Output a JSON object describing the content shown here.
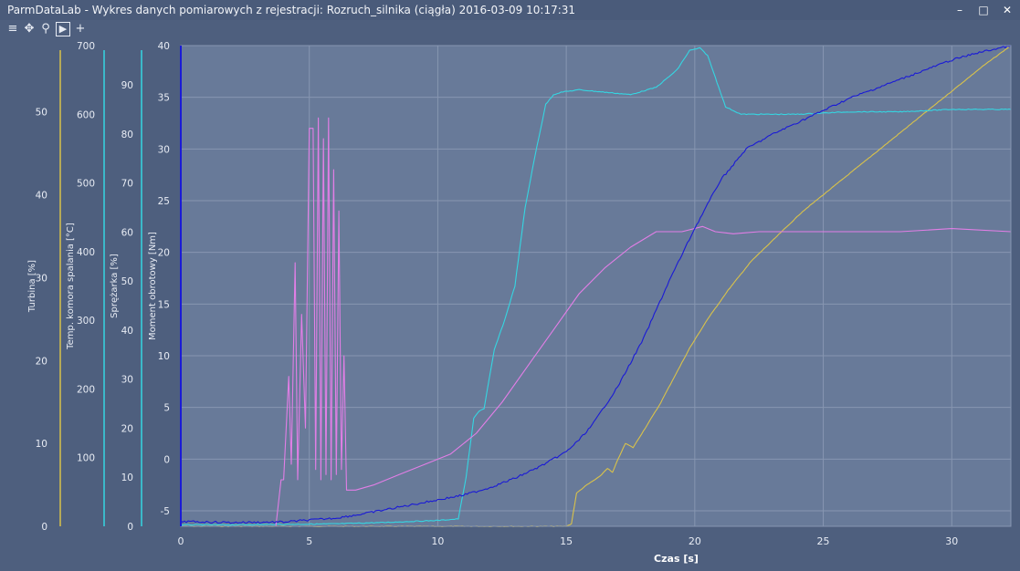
{
  "window": {
    "title": "ParmDataLab - Wykres danych pomiarowych z rejestracji: Rozruch_silnika (ciągła) 2016-03-09 10:17:31",
    "minimize_glyph": "–",
    "maximize_glyph": "□",
    "close_glyph": "✕"
  },
  "toolbar": {
    "icons": [
      "menu-icon",
      "pan-icon",
      "zoom-icon",
      "play-icon",
      "crosshair-icon"
    ]
  },
  "colors": {
    "background": "#4e5f7e",
    "plot_area": "#687a99",
    "grid": "#8796b1",
    "turbina": "#d9c24a",
    "temp": "#35d6e2",
    "sprezarka": "#35d6e2",
    "moment": "#e27ee6",
    "blue_series": "#1a1ad6"
  },
  "chart_data": {
    "type": "line",
    "title": "",
    "xlabel": "Czas [s]",
    "xlim": [
      0,
      32.3
    ],
    "xticks": [
      0,
      5,
      10,
      15,
      20,
      25,
      30
    ],
    "axes": [
      {
        "id": "turbina",
        "label": "Turbina [%]",
        "range": [
          0,
          58
        ],
        "ticks": [
          0,
          10,
          20,
          30,
          40,
          50
        ],
        "color": "#d9c24a"
      },
      {
        "id": "temp",
        "label": "Temp. komora spalania [°C]",
        "range": [
          0,
          700
        ],
        "ticks": [
          100,
          200,
          300,
          400,
          500,
          600,
          700
        ],
        "color": "#35d6e2"
      },
      {
        "id": "sprezarka",
        "label": "Sprężarka [%]",
        "range": [
          0,
          98
        ],
        "ticks": [
          0,
          10,
          20,
          30,
          40,
          50,
          60,
          70,
          80,
          90
        ],
        "color": "#35d6e2"
      },
      {
        "id": "moment",
        "label": "Moment obrotowy [Nm]",
        "range": [
          -6.5,
          40
        ],
        "ticks": [
          -5,
          0,
          5,
          10,
          15,
          20,
          25,
          30,
          35,
          40
        ],
        "color": "#e27ee6"
      },
      {
        "id": "blue",
        "label": "",
        "range": [
          0,
          100
        ],
        "ticks": [],
        "color": "#1a1ad6"
      }
    ],
    "series": [
      {
        "axis": "turbina",
        "color": "#d9c24a",
        "x": [
          0,
          15.0,
          15.2,
          15.4,
          15.8,
          16.3,
          16.6,
          16.8,
          17.0,
          17.3,
          17.6,
          18.0,
          18.6,
          19.2,
          19.8,
          20.5,
          21.3,
          22.2,
          23.2,
          24.2,
          25.2,
          26.2,
          27.2,
          28.2,
          29.2,
          30.2,
          31.2,
          32.3
        ],
        "y": [
          0,
          0,
          0.3,
          4.0,
          5.0,
          6.0,
          7.0,
          6.5,
          8.0,
          10.0,
          9.5,
          11.5,
          14.5,
          18.0,
          21.5,
          25.0,
          28.5,
          32.0,
          35.0,
          38.0,
          40.5,
          43.0,
          45.5,
          48.0,
          50.5,
          53.0,
          55.5,
          58.0
        ]
      },
      {
        "axis": "sprezarka",
        "color": "#35d6e2",
        "x": [
          0,
          2,
          4,
          6,
          8,
          10,
          10.8,
          11.1,
          11.4,
          11.6,
          11.8,
          12.2,
          12.6,
          13.0,
          13.4,
          13.8,
          14.2,
          14.5,
          14.8,
          15.5,
          16.5,
          17.5,
          18.5,
          19.3,
          19.8,
          20.2,
          20.5,
          20.8,
          21.2,
          21.8,
          22.5,
          24,
          26,
          28,
          30,
          32.3
        ],
        "y": [
          0.3,
          0.3,
          0.4,
          0.5,
          0.8,
          1.2,
          1.5,
          10,
          22,
          23.5,
          24,
          36,
          42,
          49,
          65,
          76,
          86,
          88,
          88.5,
          89,
          88.5,
          88,
          89.5,
          93,
          97,
          97.5,
          96,
          91.5,
          85.5,
          84,
          84,
          84,
          84.5,
          84.5,
          85,
          85
        ]
      },
      {
        "axis": "moment",
        "color": "#e27ee6",
        "x": [
          0,
          3.3,
          3.7,
          3.9,
          4.0,
          4.2,
          4.3,
          4.45,
          4.55,
          4.7,
          4.85,
          5.0,
          5.15,
          5.25,
          5.35,
          5.45,
          5.55,
          5.65,
          5.75,
          5.85,
          5.95,
          6.05,
          6.15,
          6.25,
          6.35,
          6.45,
          6.55,
          6.8,
          7.5,
          8.5,
          9.5,
          10.5,
          11.5,
          12.5,
          13.5,
          14.5,
          15.5,
          16.5,
          17.5,
          18.5,
          19.5,
          20.3,
          20.8,
          21.5,
          22.5,
          24,
          26,
          28,
          30,
          32.3
        ],
        "y": [
          -6.5,
          -6.5,
          -6.5,
          -2,
          -2,
          8,
          -0.5,
          19,
          -2,
          14,
          3,
          32,
          32,
          -1,
          33,
          -2,
          31,
          -1.5,
          33,
          -2,
          28,
          -1.5,
          24,
          -1,
          10,
          -3,
          -3,
          -3,
          -2.5,
          -1.5,
          -0.5,
          0.5,
          2.5,
          5.5,
          9,
          12.5,
          16,
          18.5,
          20.5,
          22,
          22,
          22.5,
          22,
          21.8,
          22,
          22,
          22,
          22,
          22.3,
          22
        ]
      },
      {
        "axis": "blue",
        "color": "#1a1ad6",
        "x": [
          0,
          2,
          4,
          6,
          7,
          8,
          9,
          10,
          11,
          12,
          13,
          14,
          15,
          15.5,
          16,
          17,
          18,
          19,
          20,
          21,
          22,
          23,
          24,
          25,
          26,
          27,
          28,
          29,
          30,
          31,
          32.3
        ],
        "y": [
          1.0,
          0.8,
          0.9,
          1.7,
          2.5,
          3.5,
          4.5,
          5.5,
          6.5,
          8.0,
          10.0,
          12.5,
          15.5,
          18.0,
          21.0,
          29.0,
          39.0,
          51.0,
          62.0,
          72.0,
          78.5,
          81.5,
          84.0,
          86.5,
          89.0,
          91.0,
          93.0,
          95.0,
          97.0,
          98.5,
          100.0
        ]
      }
    ]
  }
}
